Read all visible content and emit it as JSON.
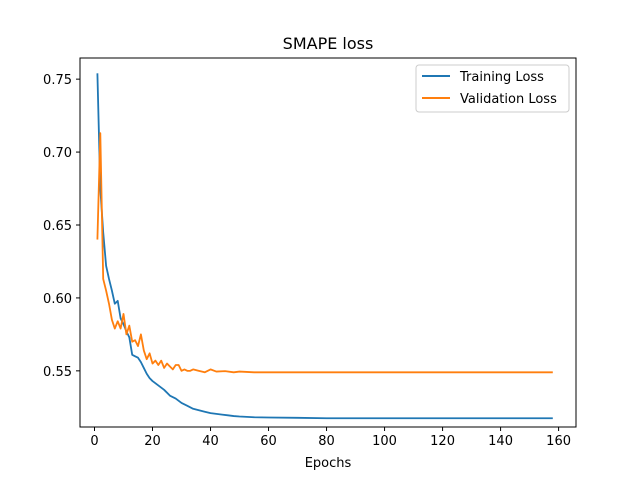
{
  "chart_data": {
    "type": "line",
    "title": "SMAPE loss",
    "xlabel": "Epochs",
    "ylabel": "",
    "xlim": [
      -5,
      166
    ],
    "ylim": [
      0.5115,
      0.7645
    ],
    "xticks": [
      0,
      20,
      40,
      60,
      80,
      100,
      120,
      140,
      160
    ],
    "yticks": [
      0.55,
      0.6,
      0.65,
      0.7,
      0.75
    ],
    "ytick_labels": [
      "0.55",
      "0.60",
      "0.65",
      "0.70",
      "0.75"
    ],
    "grid": false,
    "legend_position": "top-right",
    "series": [
      {
        "name": "Training Loss",
        "color": "#1f77b4",
        "points": [
          [
            1,
            0.754
          ],
          [
            2,
            0.675
          ],
          [
            3,
            0.645
          ],
          [
            4,
            0.622
          ],
          [
            5,
            0.613
          ],
          [
            6,
            0.605
          ],
          [
            7,
            0.596
          ],
          [
            8,
            0.598
          ],
          [
            9,
            0.586
          ],
          [
            10,
            0.582
          ],
          [
            11,
            0.577
          ],
          [
            12,
            0.573
          ],
          [
            13,
            0.561
          ],
          [
            14,
            0.56
          ],
          [
            15,
            0.559
          ],
          [
            16,
            0.556
          ],
          [
            17,
            0.552
          ],
          [
            18,
            0.548
          ],
          [
            19,
            0.545
          ],
          [
            20,
            0.543
          ],
          [
            22,
            0.54
          ],
          [
            24,
            0.537
          ],
          [
            26,
            0.533
          ],
          [
            28,
            0.531
          ],
          [
            30,
            0.528
          ],
          [
            32,
            0.526
          ],
          [
            34,
            0.524
          ],
          [
            36,
            0.523
          ],
          [
            38,
            0.522
          ],
          [
            40,
            0.521
          ],
          [
            42,
            0.5205
          ],
          [
            44,
            0.52
          ],
          [
            46,
            0.5195
          ],
          [
            48,
            0.519
          ],
          [
            50,
            0.5187
          ],
          [
            55,
            0.5182
          ],
          [
            60,
            0.518
          ],
          [
            70,
            0.5178
          ],
          [
            80,
            0.5175
          ],
          [
            100,
            0.5175
          ],
          [
            120,
            0.5175
          ],
          [
            140,
            0.5175
          ],
          [
            158,
            0.5175
          ]
        ]
      },
      {
        "name": "Validation Loss",
        "color": "#ff7f0e",
        "points": [
          [
            1,
            0.64
          ],
          [
            2,
            0.713
          ],
          [
            3,
            0.613
          ],
          [
            4,
            0.605
          ],
          [
            5,
            0.596
          ],
          [
            6,
            0.585
          ],
          [
            7,
            0.579
          ],
          [
            8,
            0.584
          ],
          [
            9,
            0.579
          ],
          [
            10,
            0.589
          ],
          [
            11,
            0.575
          ],
          [
            12,
            0.581
          ],
          [
            13,
            0.57
          ],
          [
            14,
            0.571
          ],
          [
            15,
            0.567
          ],
          [
            16,
            0.575
          ],
          [
            17,
            0.564
          ],
          [
            18,
            0.558
          ],
          [
            19,
            0.562
          ],
          [
            20,
            0.555
          ],
          [
            21,
            0.557
          ],
          [
            22,
            0.554
          ],
          [
            23,
            0.557
          ],
          [
            24,
            0.552
          ],
          [
            25,
            0.555
          ],
          [
            26,
            0.553
          ],
          [
            27,
            0.551
          ],
          [
            28,
            0.554
          ],
          [
            29,
            0.554
          ],
          [
            30,
            0.55
          ],
          [
            31,
            0.551
          ],
          [
            32,
            0.55
          ],
          [
            33,
            0.55
          ],
          [
            34,
            0.551
          ],
          [
            36,
            0.55
          ],
          [
            38,
            0.549
          ],
          [
            40,
            0.551
          ],
          [
            42,
            0.5495
          ],
          [
            45,
            0.5498
          ],
          [
            48,
            0.549
          ],
          [
            50,
            0.5495
          ],
          [
            55,
            0.549
          ],
          [
            60,
            0.549
          ],
          [
            80,
            0.549
          ],
          [
            100,
            0.549
          ],
          [
            120,
            0.549
          ],
          [
            140,
            0.549
          ],
          [
            158,
            0.549
          ]
        ]
      }
    ]
  }
}
